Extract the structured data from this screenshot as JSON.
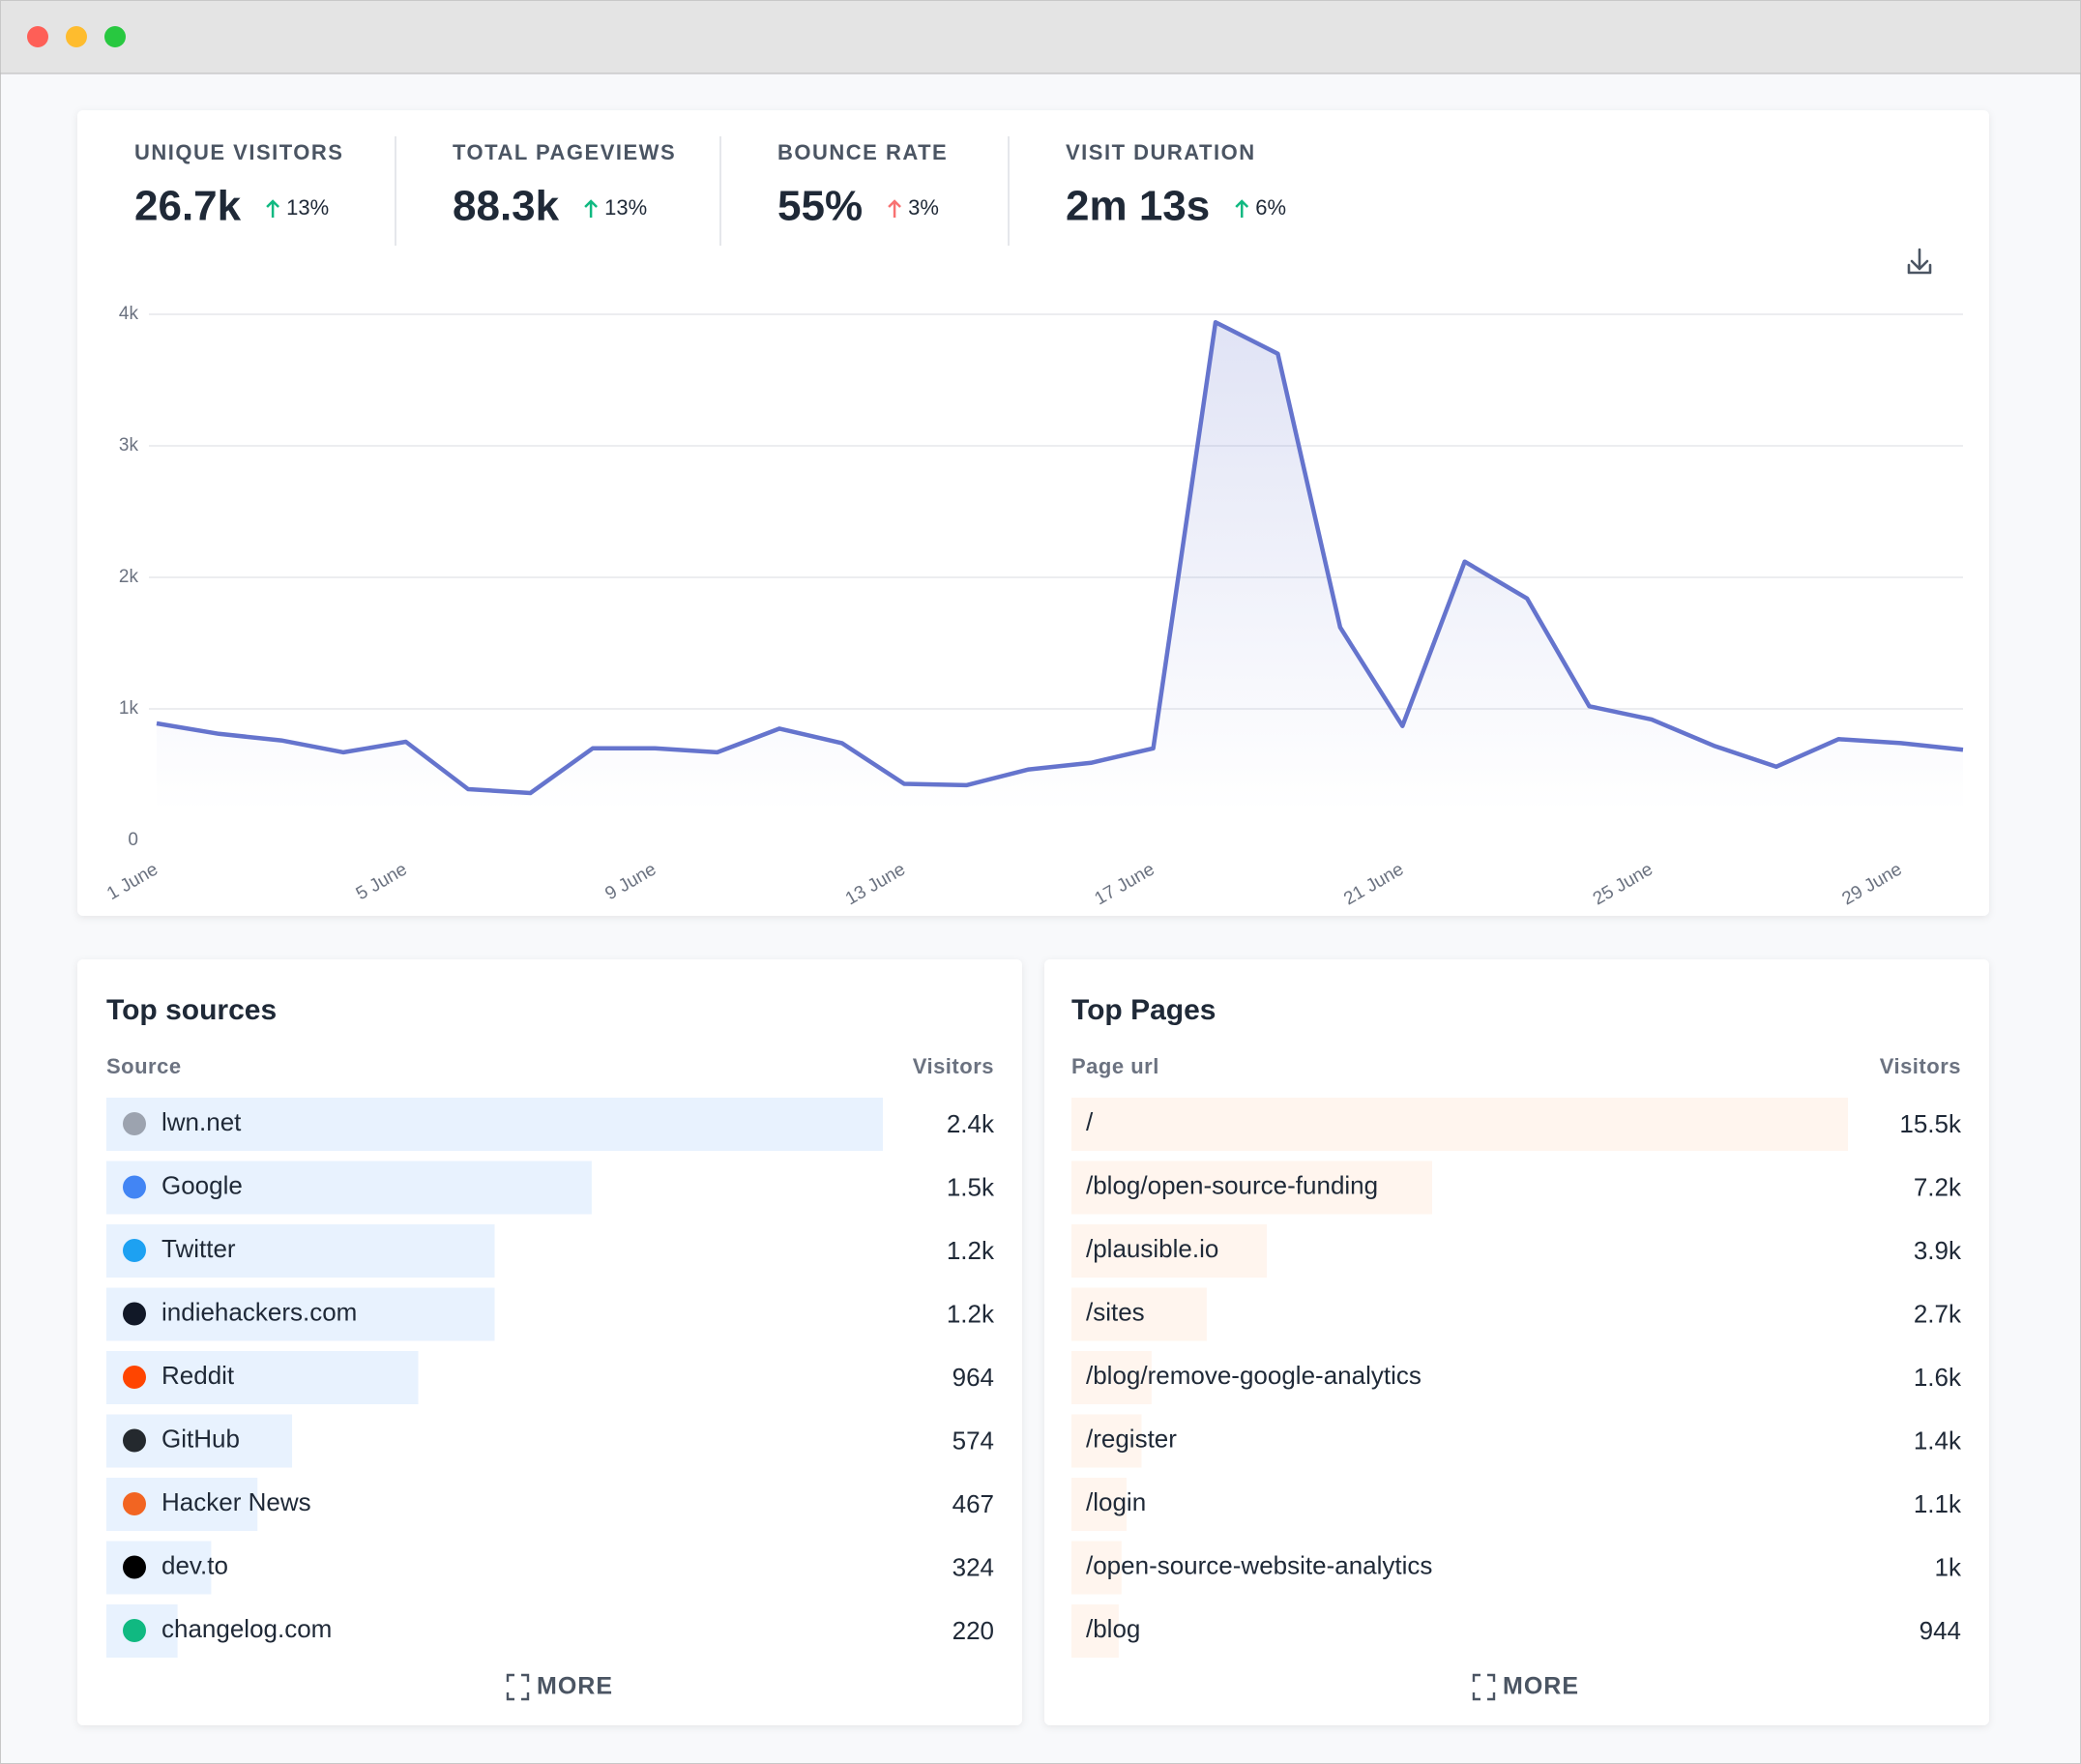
{
  "stats": [
    {
      "label": "UNIQUE VISITORS",
      "value": "26.7k",
      "change": "13%",
      "color": "#10b981"
    },
    {
      "label": "TOTAL PAGEVIEWS",
      "value": "88.3k",
      "change": "13%",
      "color": "#10b981"
    },
    {
      "label": "BOUNCE RATE",
      "value": "55%",
      "change": "3%",
      "color": "#f87171"
    },
    {
      "label": "VISIT DURATION",
      "value": "2m 13s",
      "change": "6%",
      "color": "#10b981"
    }
  ],
  "chart_data": {
    "type": "line",
    "categories": [
      "1 June",
      null,
      null,
      null,
      "5 June",
      null,
      null,
      null,
      "9 June",
      null,
      null,
      null,
      "13 June",
      null,
      null,
      null,
      "17 June",
      null,
      null,
      null,
      "21 June",
      null,
      null,
      null,
      "25 June",
      null,
      null,
      null,
      "29 June",
      null
    ],
    "values": [
      890,
      810,
      760,
      670,
      750,
      390,
      360,
      700,
      700,
      670,
      850,
      740,
      430,
      420,
      540,
      590,
      700,
      3940,
      3700,
      1620,
      870,
      2120,
      1840,
      1020,
      920,
      720,
      560,
      770,
      740,
      690
    ],
    "color": "#6574cd",
    "ylim": [
      0,
      4000
    ],
    "yticks": [
      0,
      {
        "value": 1000,
        "label": "1k"
      },
      {
        "value": 2000,
        "label": "2k"
      },
      {
        "value": 3000,
        "label": "3k"
      },
      {
        "value": 4000,
        "label": "4k"
      }
    ],
    "grid": true
  },
  "sources": {
    "title": "Top sources",
    "columns": [
      "Source",
      "Visitors"
    ],
    "names": [
      "lwn.net",
      "Google",
      "Twitter",
      "indiehackers.com",
      "Reddit",
      "GitHub",
      "Hacker News",
      "dev.to",
      "changelog.com"
    ],
    "values": [
      2400,
      1500,
      1200,
      1200,
      964,
      574,
      467,
      324,
      220
    ],
    "value_labels": [
      "2.4k",
      "1.5k",
      "1.2k",
      "1.2k",
      "964",
      "574",
      "467",
      "324",
      "220"
    ],
    "color": "#e8f2fe",
    "more": "MORE"
  },
  "pages": {
    "title": "Top Pages",
    "columns": [
      "Page url",
      "Visitors"
    ],
    "names": [
      "/",
      "/blog/open-source-funding",
      "/plausible.io",
      "/sites",
      "/blog/remove-google-analytics",
      "/register",
      "/login",
      "/open-source-website-analytics",
      "/blog"
    ],
    "values": [
      15500,
      7200,
      3900,
      2700,
      1600,
      1400,
      1100,
      1000,
      944
    ],
    "value_labels": [
      "15.5k",
      "7.2k",
      "3.9k",
      "2.7k",
      "1.6k",
      "1.4k",
      "1.1k",
      "1k",
      "944"
    ],
    "color": "#fff5ee",
    "more": "MORE"
  }
}
